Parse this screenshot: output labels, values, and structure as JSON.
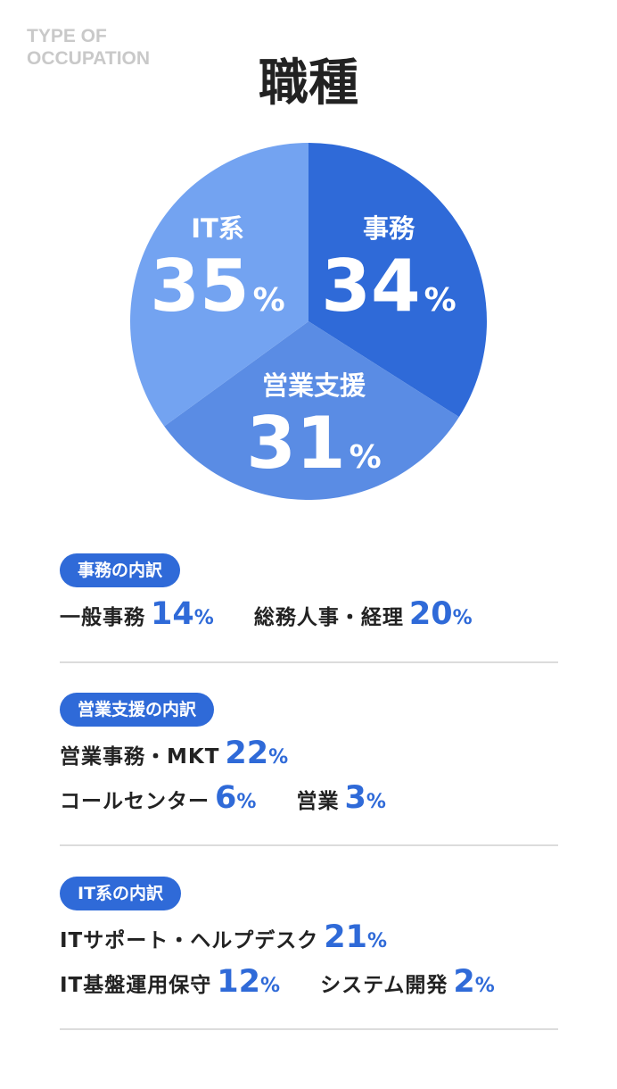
{
  "eyebrow": {
    "line1": "TYPE OF",
    "line2": "OCCUPATION"
  },
  "title": "職種",
  "colors": {
    "jimu": "#2f6ad8",
    "eigyo": "#5a8ce4",
    "it": "#73a3f1",
    "accent": "#2f6ad8"
  },
  "chart_data": {
    "type": "pie",
    "title": "職種",
    "slices": [
      {
        "label": "事務",
        "value": 34,
        "pct": "%"
      },
      {
        "label": "営業支援",
        "value": 31,
        "pct": "%"
      },
      {
        "label": "IT系",
        "value": 35,
        "pct": "%"
      }
    ]
  },
  "sections": [
    {
      "badge": "事務の内訳",
      "rows": [
        [
          {
            "label": "一般事務",
            "value": "14",
            "pct": "%"
          },
          {
            "label": "総務人事・経理",
            "value": "20",
            "pct": "%"
          }
        ]
      ]
    },
    {
      "badge": "営業支援の内訳",
      "rows": [
        [
          {
            "label": "営業事務・MKT",
            "value": "22",
            "pct": "%"
          }
        ],
        [
          {
            "label": "コールセンター",
            "value": "6",
            "pct": "%"
          },
          {
            "label": "営業",
            "value": "3",
            "pct": "%"
          }
        ]
      ]
    },
    {
      "badge": "IT系の内訳",
      "rows": [
        [
          {
            "label": "ITサポート・ヘルプデスク",
            "value": "21",
            "pct": "%"
          }
        ],
        [
          {
            "label": "IT基盤運用保守",
            "value": "12",
            "pct": "%"
          },
          {
            "label": "システム開発",
            "value": "2",
            "pct": "%"
          }
        ]
      ]
    }
  ]
}
